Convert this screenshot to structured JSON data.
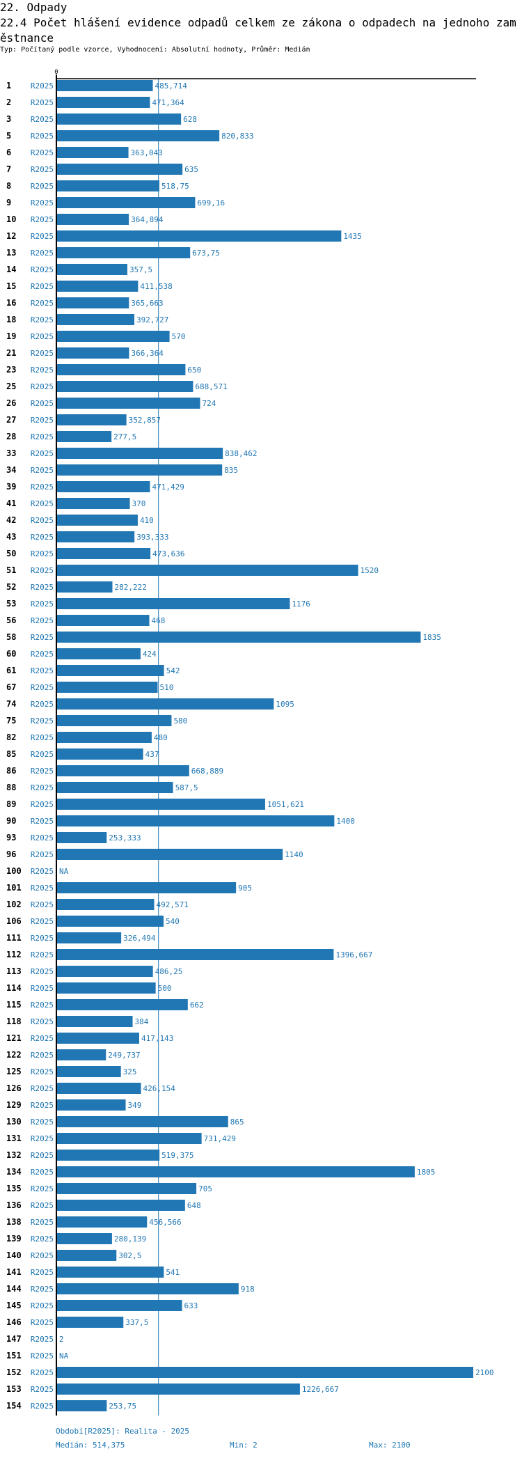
{
  "header": {
    "section": "22. Odpady",
    "title": "22.4 Počet hlášení evidence odpadů celkem ze zákona o odpadech na jednoho zaměstnance",
    "subtitle": "Typ: Počítaný podle vzorce, Vyhodnocení: Absolutní hodnoty, Průměr: Medián"
  },
  "colors": {
    "bar": "#2077b4",
    "text": "#2077b4",
    "axis": "#000000"
  },
  "chart_data": {
    "type": "bar",
    "orientation": "horizontal",
    "title": "22.4 Počet hlášení evidence odpadů celkem ze zákona o odpadech na jednoho zaměstnance",
    "axis_zero_label": "0",
    "xlim": [
      0,
      2100
    ],
    "period": "R2025",
    "median": 514.375,
    "rows": [
      {
        "id": "1",
        "value": 485.714,
        "label": "485,714"
      },
      {
        "id": "2",
        "value": 471.364,
        "label": "471,364"
      },
      {
        "id": "3",
        "value": 628,
        "label": "628"
      },
      {
        "id": "5",
        "value": 820.833,
        "label": "820,833"
      },
      {
        "id": "6",
        "value": 363.043,
        "label": "363,043"
      },
      {
        "id": "7",
        "value": 635,
        "label": "635"
      },
      {
        "id": "8",
        "value": 518.75,
        "label": "518,75"
      },
      {
        "id": "9",
        "value": 699.16,
        "label": "699,16"
      },
      {
        "id": "10",
        "value": 364.894,
        "label": "364,894"
      },
      {
        "id": "12",
        "value": 1435,
        "label": "1435"
      },
      {
        "id": "13",
        "value": 673.75,
        "label": "673,75"
      },
      {
        "id": "14",
        "value": 357.5,
        "label": "357,5"
      },
      {
        "id": "15",
        "value": 411.538,
        "label": "411,538"
      },
      {
        "id": "16",
        "value": 365.663,
        "label": "365,663"
      },
      {
        "id": "18",
        "value": 392.727,
        "label": "392,727"
      },
      {
        "id": "19",
        "value": 570,
        "label": "570"
      },
      {
        "id": "21",
        "value": 366.364,
        "label": "366,364"
      },
      {
        "id": "23",
        "value": 650,
        "label": "650"
      },
      {
        "id": "25",
        "value": 688.571,
        "label": "688,571"
      },
      {
        "id": "26",
        "value": 724,
        "label": "724"
      },
      {
        "id": "27",
        "value": 352.857,
        "label": "352,857"
      },
      {
        "id": "28",
        "value": 277.5,
        "label": "277,5"
      },
      {
        "id": "33",
        "value": 838.462,
        "label": "838,462"
      },
      {
        "id": "34",
        "value": 835,
        "label": "835"
      },
      {
        "id": "39",
        "value": 471.429,
        "label": "471,429"
      },
      {
        "id": "41",
        "value": 370,
        "label": "370"
      },
      {
        "id": "42",
        "value": 410,
        "label": "410"
      },
      {
        "id": "43",
        "value": 393.333,
        "label": "393,333"
      },
      {
        "id": "50",
        "value": 473.636,
        "label": "473,636"
      },
      {
        "id": "51",
        "value": 1520,
        "label": "1520"
      },
      {
        "id": "52",
        "value": 282.222,
        "label": "282,222"
      },
      {
        "id": "53",
        "value": 1176,
        "label": "1176"
      },
      {
        "id": "56",
        "value": 468,
        "label": "468"
      },
      {
        "id": "58",
        "value": 1835,
        "label": "1835"
      },
      {
        "id": "60",
        "value": 424,
        "label": "424"
      },
      {
        "id": "61",
        "value": 542,
        "label": "542"
      },
      {
        "id": "67",
        "value": 510,
        "label": "510"
      },
      {
        "id": "74",
        "value": 1095,
        "label": "1095"
      },
      {
        "id": "75",
        "value": 580,
        "label": "580"
      },
      {
        "id": "82",
        "value": 480,
        "label": "480"
      },
      {
        "id": "85",
        "value": 437,
        "label": "437"
      },
      {
        "id": "86",
        "value": 668.889,
        "label": "668,889"
      },
      {
        "id": "88",
        "value": 587.5,
        "label": "587,5"
      },
      {
        "id": "89",
        "value": 1051.621,
        "label": "1051,621"
      },
      {
        "id": "90",
        "value": 1400,
        "label": "1400"
      },
      {
        "id": "93",
        "value": 253.333,
        "label": "253,333"
      },
      {
        "id": "96",
        "value": 1140,
        "label": "1140"
      },
      {
        "id": "100",
        "value": null,
        "label": "NA"
      },
      {
        "id": "101",
        "value": 905,
        "label": "905"
      },
      {
        "id": "102",
        "value": 492.571,
        "label": "492,571"
      },
      {
        "id": "106",
        "value": 540,
        "label": "540"
      },
      {
        "id": "111",
        "value": 326.494,
        "label": "326,494"
      },
      {
        "id": "112",
        "value": 1396.667,
        "label": "1396,667"
      },
      {
        "id": "113",
        "value": 486.25,
        "label": "486,25"
      },
      {
        "id": "114",
        "value": 500,
        "label": "500"
      },
      {
        "id": "115",
        "value": 662,
        "label": "662"
      },
      {
        "id": "118",
        "value": 384,
        "label": "384"
      },
      {
        "id": "121",
        "value": 417.143,
        "label": "417,143"
      },
      {
        "id": "122",
        "value": 249.737,
        "label": "249,737"
      },
      {
        "id": "125",
        "value": 325,
        "label": "325"
      },
      {
        "id": "126",
        "value": 426.154,
        "label": "426,154"
      },
      {
        "id": "129",
        "value": 349,
        "label": "349"
      },
      {
        "id": "130",
        "value": 865,
        "label": "865"
      },
      {
        "id": "131",
        "value": 731.429,
        "label": "731,429"
      },
      {
        "id": "132",
        "value": 519.375,
        "label": "519,375"
      },
      {
        "id": "134",
        "value": 1805,
        "label": "1805"
      },
      {
        "id": "135",
        "value": 705,
        "label": "705"
      },
      {
        "id": "136",
        "value": 648,
        "label": "648"
      },
      {
        "id": "138",
        "value": 456.566,
        "label": "456,566"
      },
      {
        "id": "139",
        "value": 280.139,
        "label": "280,139"
      },
      {
        "id": "140",
        "value": 302.5,
        "label": "302,5"
      },
      {
        "id": "141",
        "value": 541,
        "label": "541"
      },
      {
        "id": "144",
        "value": 918,
        "label": "918"
      },
      {
        "id": "145",
        "value": 633,
        "label": "633"
      },
      {
        "id": "146",
        "value": 337.5,
        "label": "337,5"
      },
      {
        "id": "147",
        "value": 2,
        "label": "2"
      },
      {
        "id": "151",
        "value": null,
        "label": "NA"
      },
      {
        "id": "152",
        "value": 2100,
        "label": "2100"
      },
      {
        "id": "153",
        "value": 1226.667,
        "label": "1226,667"
      },
      {
        "id": "154",
        "value": 253.75,
        "label": "253,75"
      }
    ]
  },
  "footer": {
    "period_legend": "Období[R2025]: Realita - 2025",
    "median": "Medián: 514,375",
    "min": "Min: 2",
    "max": "Max: 2100"
  }
}
